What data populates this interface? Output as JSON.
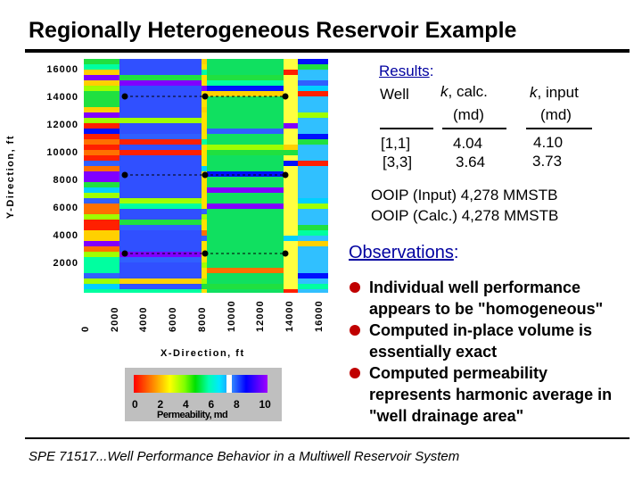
{
  "title": "Regionally Heterogeneous Reservoir Example",
  "map": {
    "ylabel": "Y-Direction, ft",
    "xlabel": "X-Direction, ft",
    "y_ticks": [
      "16000",
      "14000",
      "12000",
      "10000",
      "8000",
      "6000",
      "4000",
      "2000"
    ],
    "x_ticks": [
      "0",
      "2000",
      "4000",
      "6000",
      "8000",
      "10000",
      "12000",
      "14000",
      "16000"
    ],
    "colorbar_ticks": [
      "0",
      "2",
      "4",
      "6",
      "8",
      "10"
    ],
    "colorbar_label": "Permeability, md"
  },
  "results": {
    "heading": "Results",
    "heading_colon": ":",
    "col_well": "Well",
    "col_calc_top": "k, calc.",
    "col_calc_unit": "(md)",
    "col_input_top": "k, input",
    "col_input_unit": "(md)",
    "wells": [
      "[1,1]",
      "[3,3]"
    ],
    "k_calc": [
      "4.04",
      "3.64"
    ],
    "k_input": [
      "4.10",
      "3.73"
    ],
    "ooip_input": "OOIP (Input) 4,278 MMSTB",
    "ooip_calc": "OOIP (Calc.) 4,278 MMSTB"
  },
  "observations": {
    "heading": "Observations",
    "heading_colon": ":",
    "items": [
      [
        "Individual well performance",
        "appears to be \"homogeneous\""
      ],
      [
        "Computed in-place volume is",
        "essentially exact"
      ],
      [
        "Computed permeability",
        "represents harmonic average in",
        "\"well drainage area\""
      ]
    ]
  },
  "footer": "SPE 71517...Well Performance Behavior in a Multiwell Reservoir System",
  "colors": {
    "bullet": "#c00000"
  }
}
